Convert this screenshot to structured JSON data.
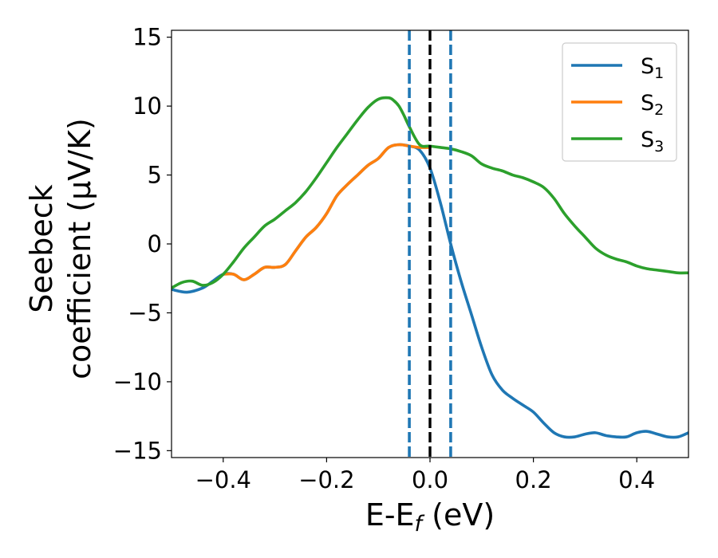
{
  "chart_data": {
    "type": "line",
    "xlabel": {
      "main": "E-E",
      "sub": "f",
      "unit": " (eV)"
    },
    "ylabel": {
      "line1": "Seebeck",
      "line2": "coefficient  (μV/K)"
    },
    "xlim": [
      -0.5,
      0.5
    ],
    "ylim": [
      -15.5,
      15.5
    ],
    "xticks": [
      -0.4,
      -0.2,
      0.0,
      0.2,
      0.4
    ],
    "xtick_labels": [
      "−0.4",
      "−0.2",
      "0.0",
      "0.2",
      "0.4"
    ],
    "yticks": [
      -15,
      -10,
      -5,
      0,
      5,
      10,
      15
    ],
    "ytick_labels": [
      "−15",
      "−10",
      "−5",
      "0",
      "5",
      "10",
      "15"
    ],
    "grid": false,
    "legend": {
      "placement": "top-right"
    },
    "vertical_lines": [
      {
        "x": -0.04,
        "style": "dashed",
        "color": "#1f77b4"
      },
      {
        "x": 0.0,
        "style": "dashed",
        "color": "#000000"
      },
      {
        "x": 0.04,
        "style": "dashed",
        "color": "#1f77b4"
      }
    ],
    "series": [
      {
        "name": "S",
        "sub": "1",
        "color": "#1f77b4",
        "x": [
          -0.5,
          -0.47,
          -0.44,
          -0.42,
          -0.4,
          -0.38,
          -0.36,
          -0.34,
          -0.32,
          -0.3,
          -0.28,
          -0.26,
          -0.24,
          -0.22,
          -0.2,
          -0.18,
          -0.16,
          -0.14,
          -0.12,
          -0.1,
          -0.08,
          -0.06,
          -0.04,
          -0.02,
          0.0,
          0.02,
          0.04,
          0.06,
          0.08,
          0.1,
          0.12,
          0.14,
          0.16,
          0.18,
          0.2,
          0.22,
          0.24,
          0.26,
          0.28,
          0.3,
          0.32,
          0.34,
          0.36,
          0.38,
          0.4,
          0.42,
          0.44,
          0.46,
          0.48,
          0.5
        ],
        "y": [
          -3.3,
          -3.5,
          -3.2,
          -2.7,
          -2.2,
          -2.2,
          -2.6,
          -2.2,
          -1.7,
          -1.7,
          -1.5,
          -0.5,
          0.5,
          1.2,
          2.2,
          3.5,
          4.3,
          5.0,
          5.7,
          6.2,
          7.0,
          7.2,
          7.1,
          6.8,
          5.5,
          3.0,
          0.0,
          -2.7,
          -5.1,
          -7.5,
          -9.5,
          -10.6,
          -11.2,
          -11.7,
          -12.2,
          -13.0,
          -13.7,
          -14.0,
          -14.0,
          -13.8,
          -13.7,
          -13.9,
          -14.0,
          -14.0,
          -13.7,
          -13.6,
          -13.8,
          -14.0,
          -14.0,
          -13.7
        ]
      },
      {
        "name": "S",
        "sub": "2",
        "color": "#ff7f0e",
        "x": [
          -0.4,
          -0.38,
          -0.36,
          -0.34,
          -0.32,
          -0.3,
          -0.28,
          -0.26,
          -0.24,
          -0.22,
          -0.2,
          -0.18,
          -0.16,
          -0.14,
          -0.12,
          -0.1,
          -0.08,
          -0.06,
          -0.04,
          -0.02,
          0.0
        ],
        "y": [
          -2.2,
          -2.2,
          -2.6,
          -2.2,
          -1.7,
          -1.7,
          -1.5,
          -0.5,
          0.5,
          1.2,
          2.2,
          3.5,
          4.3,
          5.0,
          5.7,
          6.2,
          7.0,
          7.2,
          7.1,
          7.0,
          7.0
        ]
      },
      {
        "name": "S",
        "sub": "3",
        "color": "#2ca02c",
        "x": [
          -0.5,
          -0.48,
          -0.46,
          -0.44,
          -0.42,
          -0.4,
          -0.38,
          -0.36,
          -0.34,
          -0.32,
          -0.3,
          -0.28,
          -0.26,
          -0.24,
          -0.22,
          -0.2,
          -0.18,
          -0.16,
          -0.14,
          -0.12,
          -0.1,
          -0.08,
          -0.07,
          -0.06,
          -0.05,
          -0.04,
          -0.02,
          0.0,
          0.02,
          0.04,
          0.06,
          0.08,
          0.1,
          0.12,
          0.14,
          0.16,
          0.18,
          0.2,
          0.22,
          0.24,
          0.26,
          0.28,
          0.3,
          0.32,
          0.34,
          0.36,
          0.38,
          0.4,
          0.42,
          0.44,
          0.46,
          0.48,
          0.5
        ],
        "y": [
          -3.2,
          -2.8,
          -2.7,
          -3.0,
          -2.8,
          -2.2,
          -1.3,
          -0.3,
          0.5,
          1.3,
          1.8,
          2.4,
          3.0,
          3.8,
          4.8,
          5.9,
          7.0,
          8.0,
          9.0,
          9.9,
          10.5,
          10.6,
          10.4,
          10.0,
          9.3,
          8.5,
          7.2,
          7.1,
          7.0,
          6.9,
          6.7,
          6.4,
          5.8,
          5.5,
          5.3,
          5.0,
          4.8,
          4.5,
          4.1,
          3.3,
          2.2,
          1.3,
          0.5,
          -0.3,
          -0.8,
          -1.1,
          -1.3,
          -1.6,
          -1.8,
          -1.9,
          -2.0,
          -2.1,
          -2.1
        ]
      }
    ]
  }
}
